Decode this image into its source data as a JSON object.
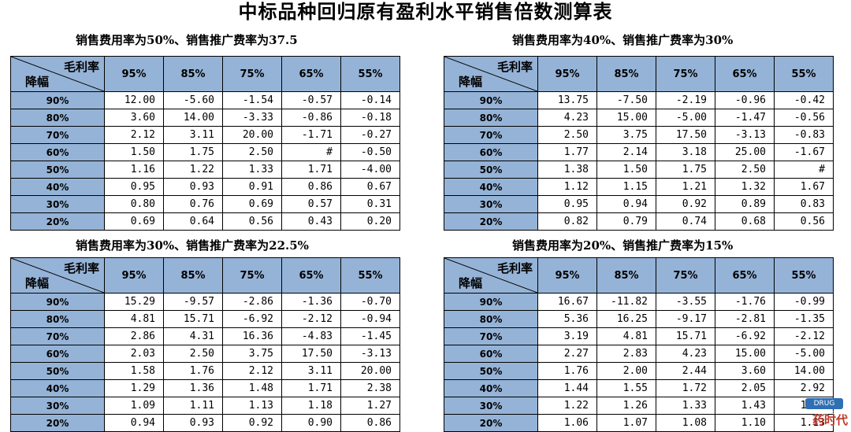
{
  "title": "中标品种回归原有盈利水平销售倍数测算表",
  "header": {
    "col_label": "毛利率",
    "row_label": "降幅"
  },
  "columns": [
    "95%",
    "85%",
    "75%",
    "65%",
    "55%"
  ],
  "rows": [
    "90%",
    "80%",
    "70%",
    "60%",
    "50%",
    "40%",
    "30%",
    "20%"
  ],
  "tables": [
    {
      "subtitle": "销售费用率为50%、销售推广费率为37.5",
      "cells": [
        [
          "12.00",
          "-5.60",
          "-1.54",
          "-0.57",
          "-0.14"
        ],
        [
          "3.60",
          "14.00",
          "-3.33",
          "-0.86",
          "-0.18"
        ],
        [
          "2.12",
          "3.11",
          "20.00",
          "-1.71",
          "-0.27"
        ],
        [
          "1.50",
          "1.75",
          "2.50",
          "#",
          "-0.50"
        ],
        [
          "1.16",
          "1.22",
          "1.33",
          "1.71",
          "-4.00"
        ],
        [
          "0.95",
          "0.93",
          "0.91",
          "0.86",
          "0.67"
        ],
        [
          "0.80",
          "0.76",
          "0.69",
          "0.57",
          "0.31"
        ],
        [
          "0.69",
          "0.64",
          "0.56",
          "0.43",
          "0.20"
        ]
      ]
    },
    {
      "subtitle": "销售费用率为40%、销售推广费率为30%",
      "cells": [
        [
          "13.75",
          "-7.50",
          "-2.19",
          "-0.96",
          "-0.42"
        ],
        [
          "4.23",
          "15.00",
          "-5.00",
          "-1.47",
          "-0.56"
        ],
        [
          "2.50",
          "3.75",
          "17.50",
          "-3.13",
          "-0.83"
        ],
        [
          "1.77",
          "2.14",
          "3.18",
          "25.00",
          "-1.67"
        ],
        [
          "1.38",
          "1.50",
          "1.75",
          "2.50",
          "#"
        ],
        [
          "1.12",
          "1.15",
          "1.21",
          "1.32",
          "1.67"
        ],
        [
          "0.95",
          "0.94",
          "0.92",
          "0.89",
          "0.83"
        ],
        [
          "0.82",
          "0.79",
          "0.74",
          "0.68",
          "0.56"
        ]
      ]
    },
    {
      "subtitle": "销售费用率为30%、销售推广费率为22.5%",
      "cells": [
        [
          "15.29",
          "-9.57",
          "-2.86",
          "-1.36",
          "-0.70"
        ],
        [
          "4.81",
          "15.71",
          "-6.92",
          "-2.12",
          "-0.94"
        ],
        [
          "2.86",
          "4.31",
          "16.36",
          "-4.83",
          "-1.45"
        ],
        [
          "2.03",
          "2.50",
          "3.75",
          "17.50",
          "-3.13"
        ],
        [
          "1.58",
          "1.76",
          "2.12",
          "3.11",
          "20.00"
        ],
        [
          "1.29",
          "1.36",
          "1.48",
          "1.71",
          "2.38"
        ],
        [
          "1.09",
          "1.11",
          "1.13",
          "1.18",
          "1.27"
        ],
        [
          "0.94",
          "0.93",
          "0.92",
          "0.90",
          "0.86"
        ]
      ]
    },
    {
      "subtitle": "销售费用率为20%、销售推广费率为15%",
      "cells": [
        [
          "16.67",
          "-11.82",
          "-3.55",
          "-1.76",
          "-0.99"
        ],
        [
          "5.36",
          "16.25",
          "-9.17",
          "-2.81",
          "-1.35"
        ],
        [
          "3.19",
          "4.81",
          "15.71",
          "-6.92",
          "-2.12"
        ],
        [
          "2.27",
          "2.83",
          "4.23",
          "15.00",
          "-5.00"
        ],
        [
          "1.76",
          "2.00",
          "2.44",
          "3.60",
          "14.00"
        ],
        [
          "1.44",
          "1.55",
          "1.72",
          "2.05",
          "2.92"
        ],
        [
          "1.22",
          "1.26",
          "1.33",
          "1.43",
          "1.65"
        ],
        [
          "1.06",
          "1.07",
          "1.08",
          "1.10",
          "1.13"
        ]
      ]
    }
  ],
  "watermark": {
    "badge": "DRUG TIMES",
    "text": "药时代"
  },
  "colors": {
    "header_fill": "#95b3d7",
    "border": "#000000"
  }
}
